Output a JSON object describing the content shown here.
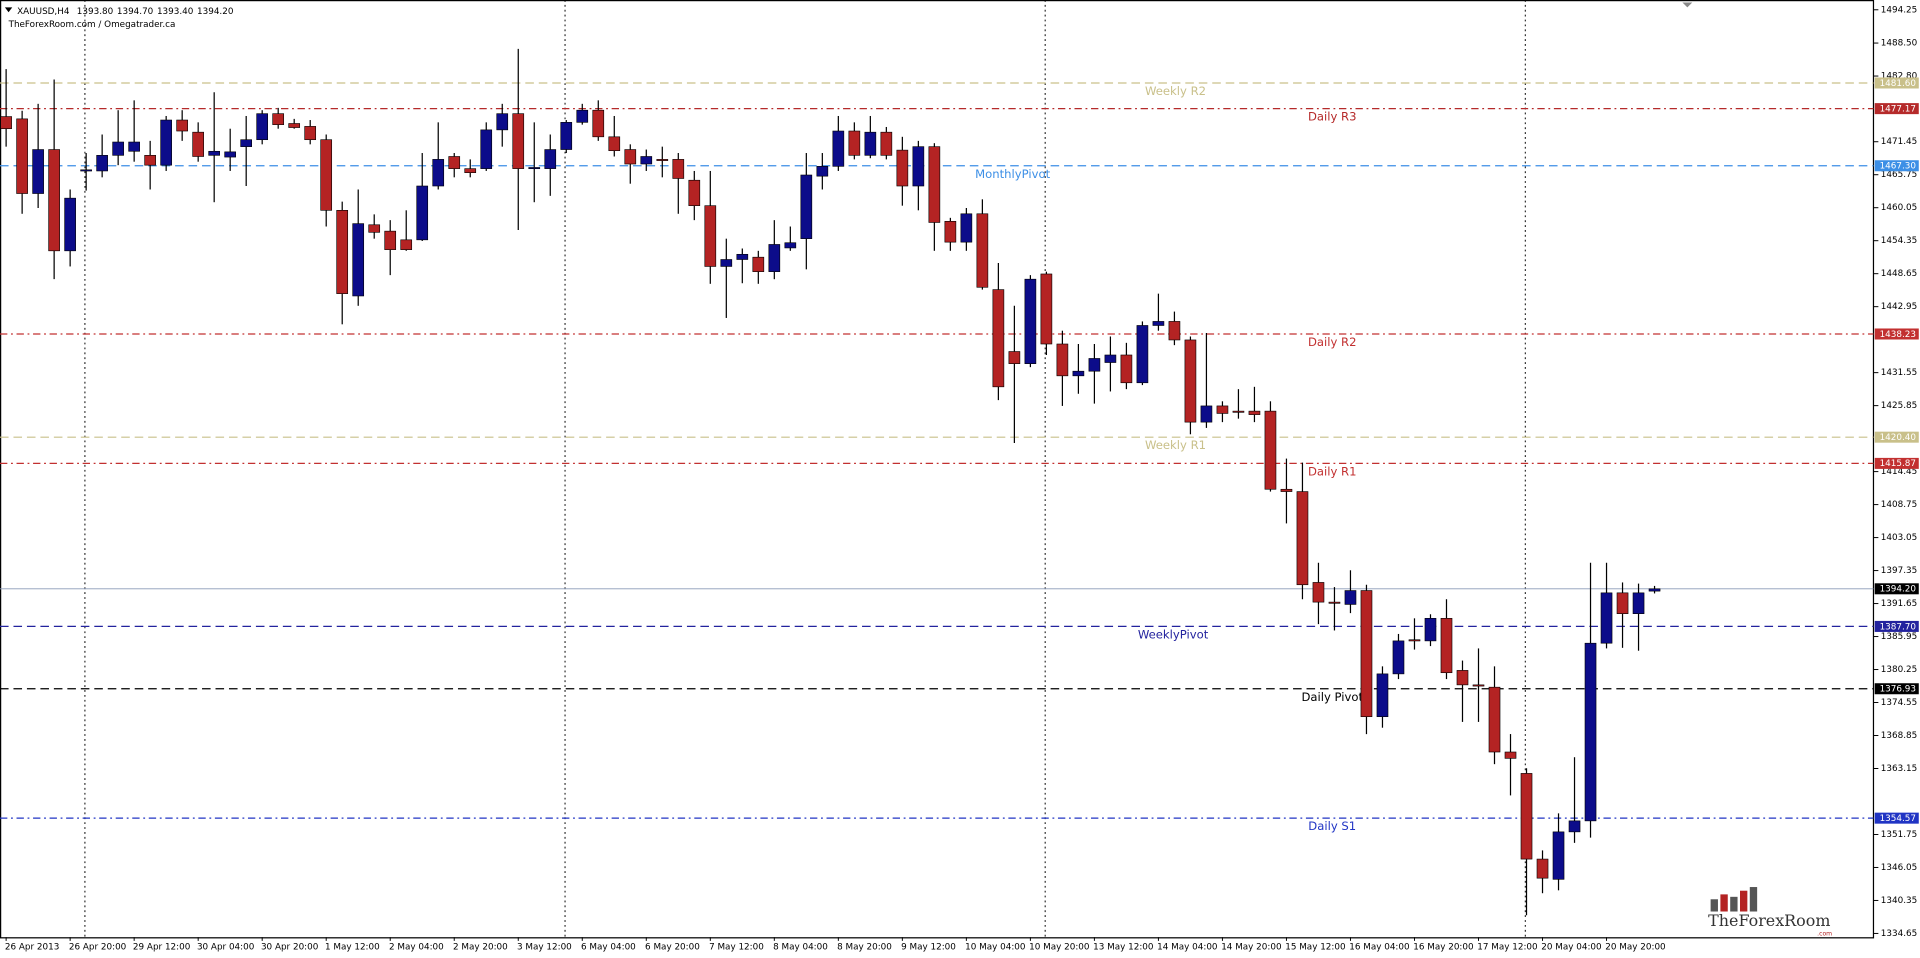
{
  "chart_data": {
    "type": "candlestick",
    "title": "XAUUSD,H4",
    "quote": [
      "1393.80",
      "1394.70",
      "1393.40",
      "1394.20"
    ],
    "subtitle": "TheForexRoom.com / Omegatrader.ca",
    "watermark": {
      "name": "TheForexRoom",
      "suffix": ".com"
    },
    "up_color": "#0c0c8a",
    "down_color": "#b42323",
    "wick_color": "#000000",
    "categories": [
      "26 Apr 2013",
      null,
      null,
      null,
      "26 Apr 20:00",
      null,
      null,
      null,
      "29 Apr 12:00",
      null,
      null,
      null,
      "30 Apr 04:00",
      null,
      null,
      null,
      "30 Apr 20:00",
      null,
      null,
      null,
      "1 May 12:00",
      null,
      null,
      null,
      "2 May 04:00",
      null,
      null,
      null,
      "2 May 20:00",
      null,
      null,
      null,
      "3 May 12:00",
      null,
      null,
      null,
      "6 May 04:00",
      null,
      null,
      null,
      "6 May 20:00",
      null,
      null,
      null,
      "7 May 12:00",
      null,
      null,
      null,
      "8 May 04:00",
      null,
      null,
      null,
      "8 May 20:00",
      null,
      null,
      null,
      "9 May 12:00",
      null,
      null,
      null,
      "10 May 04:00",
      null,
      null,
      null,
      "10 May 20:00",
      null,
      null,
      null,
      "13 May 12:00",
      null,
      null,
      null,
      "14 May 04:00",
      null,
      null,
      null,
      "14 May 20:00",
      null,
      null,
      null,
      "15 May 12:00",
      null,
      null,
      null,
      "16 May 04:00",
      null,
      null,
      null,
      "16 May 20:00",
      null,
      null,
      null,
      "17 May 12:00",
      null,
      null,
      null,
      "20 May 04:00",
      null,
      null,
      null,
      "20 May 20:00",
      null,
      null,
      null
    ],
    "open": [
      1475.8,
      1475.4,
      1462.5,
      1470.1,
      1452.6,
      1466.4,
      1466.4,
      1469.1,
      1469.8,
      1469.1,
      1467.4,
      1475.2,
      1473.1,
      1469.1,
      1468.8,
      1470.6,
      1471.8,
      1476.3,
      1474.6,
      1474.1,
      1471.8,
      1459.6,
      1444.8,
      1457.1,
      1456.0,
      1454.5,
      1454.5,
      1463.8,
      1468.9,
      1466.8,
      1466.8,
      1473.5,
      1476.3,
      1466.8,
      1466.8,
      1470.1,
      1474.8,
      1476.9,
      1472.3,
      1470.1,
      1467.6,
      1468.4,
      1468.4,
      1464.8,
      1460.4,
      1449.9,
      1451.1,
      1451.5,
      1449.0,
      1453.1,
      1454.7,
      1465.5,
      1467.2,
      1473.3,
      1469.1,
      1473.1,
      1470.0,
      1463.8,
      1470.6,
      1457.7,
      1454.1,
      1459.0,
      1445.9,
      1435.2,
      1433.1,
      1448.6,
      1436.5,
      1431.0,
      1431.8,
      1433.3,
      1434.6,
      1429.8,
      1439.7,
      1440.4,
      1437.2,
      1423.0,
      1425.8,
      1424.9,
      1424.9,
      1424.9,
      1411.4,
      1411.0,
      1395.3,
      1391.9,
      1391.5,
      1393.9,
      1372.1,
      1379.5,
      1385.4,
      1385.2,
      1389.1,
      1380.1,
      1377.6,
      1377.2,
      1366.0,
      1362.3,
      1347.5,
      1344.0,
      1352.2,
      1354.1,
      1384.8,
      1393.5,
      1389.9,
      1393.8
    ],
    "high": [
      1484,
      1476.8,
      1478,
      1482.2,
      1463.2,
      1469.5,
      1472.7,
      1476.9,
      1478.6,
      1471.6,
      1475.9,
      1476.9,
      1474.8,
      1480,
      1473.7,
      1475.9,
      1476.9,
      1477.3,
      1475.4,
      1475.2,
      1472.7,
      1461.1,
      1463.2,
      1458.9,
      1457.9,
      1459.6,
      1469.5,
      1474.8,
      1469.5,
      1468.4,
      1474.8,
      1478,
      1487.5,
      1474.8,
      1472.7,
      1475.2,
      1478,
      1478.6,
      1475.9,
      1471,
      1470.1,
      1470.6,
      1469.5,
      1466.4,
      1466.4,
      1454.7,
      1453,
      1452.6,
      1457.9,
      1456.8,
      1469.5,
      1469.5,
      1475.9,
      1474.8,
      1475.9,
      1474,
      1472.3,
      1471.6,
      1471.2,
      1458.3,
      1460,
      1461.5,
      1450.5,
      1443.1,
      1448.4,
      1449,
      1438.8,
      1436.5,
      1436.5,
      1437.8,
      1436.7,
      1440.4,
      1445.2,
      1442.1,
      1437.8,
      1438.4,
      1426.6,
      1428.7,
      1429.1,
      1426.6,
      1416.7,
      1416,
      1398.7,
      1394.5,
      1397.4,
      1394.9,
      1380.8,
      1386.4,
      1389.1,
      1389.8,
      1392.4,
      1381.8,
      1383.9,
      1380.8,
      1369.1,
      1363.2,
      1349,
      1355.4,
      1365.1,
      1398.7,
      1398.7,
      1395.3,
      1395.1,
      1394.7
    ],
    "low": [
      1470.6,
      1459,
      1460,
      1447.7,
      1449.9,
      1463,
      1465.3,
      1467.4,
      1468,
      1463.2,
      1466.4,
      1471.6,
      1468,
      1461,
      1466.4,
      1463.8,
      1471,
      1473.7,
      1473.7,
      1471,
      1456.8,
      1439.9,
      1443.1,
      1454.7,
      1448.4,
      1452.6,
      1454.3,
      1463.2,
      1465.3,
      1465.3,
      1466.4,
      1470.6,
      1456.2,
      1461,
      1462.1,
      1469.5,
      1474.4,
      1471.6,
      1468.9,
      1464.2,
      1466.4,
      1465.3,
      1459,
      1457.9,
      1446.9,
      1441,
      1447,
      1446.9,
      1447.7,
      1452.6,
      1449.4,
      1463.2,
      1466.4,
      1468.4,
      1468.6,
      1468.4,
      1460.4,
      1459.6,
      1452.6,
      1452.6,
      1452.6,
      1445.9,
      1426.8,
      1419.4,
      1432.5,
      1434.6,
      1425.8,
      1427.9,
      1426.2,
      1428.3,
      1428.7,
      1429.4,
      1438.8,
      1436.3,
      1420.9,
      1422,
      1423,
      1423.6,
      1423,
      1411,
      1405.5,
      1392.4,
      1388.1,
      1387,
      1390,
      1369.1,
      1370.2,
      1378.6,
      1383.7,
      1384.3,
      1378.6,
      1371.2,
      1371.2,
      1363.9,
      1358.5,
      1337.8,
      1341.6,
      1342.1,
      1350.3,
      1351.2,
      1383.9,
      1384,
      1383.5,
      1393.4
    ],
    "close": [
      1473.7,
      1462.5,
      1470.1,
      1452.6,
      1461.7,
      1466.6,
      1469.1,
      1471.4,
      1471.4,
      1467.4,
      1475.2,
      1473.3,
      1468.9,
      1469.8,
      1469.7,
      1471.8,
      1476.3,
      1474.4,
      1473.9,
      1471.8,
      1459.6,
      1445.2,
      1457.3,
      1455.8,
      1452.8,
      1452.8,
      1463.8,
      1468.4,
      1466.8,
      1466.1,
      1473.5,
      1476.3,
      1466.8,
      1467.0,
      1470.1,
      1474.8,
      1476.9,
      1472.3,
      1469.9,
      1467.6,
      1468.9,
      1468.2,
      1465.1,
      1460.4,
      1449.9,
      1451.1,
      1452.0,
      1449.0,
      1453.7,
      1454.0,
      1465.7,
      1467.2,
      1473.3,
      1469.1,
      1473.1,
      1469.1,
      1463.8,
      1470.6,
      1457.5,
      1454.1,
      1459.0,
      1446.3,
      1429.1,
      1433.1,
      1447.7,
      1436.5,
      1431.0,
      1431.8,
      1434.0,
      1434.6,
      1429.8,
      1439.7,
      1440.4,
      1437.2,
      1423.0,
      1425.8,
      1424.5,
      1424.7,
      1424.3,
      1411.4,
      1411.0,
      1394.9,
      1391.9,
      1391.7,
      1393.9,
      1372.1,
      1379.5,
      1385.2,
      1385.2,
      1389.1,
      1379.7,
      1377.6,
      1377.4,
      1366.0,
      1364.9,
      1347.5,
      1344.2,
      1352.2,
      1354.1,
      1384.8,
      1393.5,
      1389.9,
      1393.5,
      1394.2
    ],
    "ylim": [
      1334.0,
      1495.94
    ],
    "yticks": [
      1494.25,
      {
        "value": 1488.5,
        "label": "1488.50"
      },
      {
        "value": 1482.8,
        "label": "1482.80"
      },
      1471.45,
      1465.75,
      1460.05,
      1454.35,
      1448.65,
      1442.95,
      1431.55,
      1425.85,
      1414.45,
      1408.75,
      1403.05,
      1397.35,
      1391.65,
      1385.95,
      1380.25,
      1374.55,
      1368.85,
      1363.15,
      1351.75,
      1346.05,
      1340.35,
      1334.65
    ],
    "grid": false,
    "current_price": {
      "value": 1394.2,
      "label": "1394.20",
      "color": "#8a9ab8"
    },
    "levels": [
      {
        "name": "Weekly R2",
        "value": 1481.6,
        "value_label": "1481.60",
        "color": "#c9c08a",
        "style": "dashed"
      },
      {
        "name": "Daily R3",
        "value": 1477.17,
        "color": "#b52a2a",
        "style": "dashdot"
      },
      {
        "name": "MonthlyPivot",
        "value": 1467.3,
        "value_label": "1467.30",
        "color": "#3c8fe6",
        "style": "dashed"
      },
      {
        "name": "Daily R2",
        "value": 1438.23,
        "color": "#c23030",
        "style": "dashdot"
      },
      {
        "name": "Weekly R1",
        "value": 1420.4,
        "value_label": "1420.40",
        "color": "#c9c08a",
        "style": "dashed"
      },
      {
        "name": "Daily R1",
        "value": 1415.87,
        "color": "#c23030",
        "style": "dashdot"
      },
      {
        "name": "WeeklyPivot",
        "value": 1387.7,
        "value_label": "1387.70",
        "color": "#23239e",
        "style": "dashed"
      },
      {
        "name": "Daily Pivot",
        "value": 1376.93,
        "color": "#000000",
        "style": "dashed"
      },
      {
        "name": "Daily S1",
        "value": 1354.57,
        "color": "#2034c4",
        "style": "dashdot"
      }
    ]
  }
}
